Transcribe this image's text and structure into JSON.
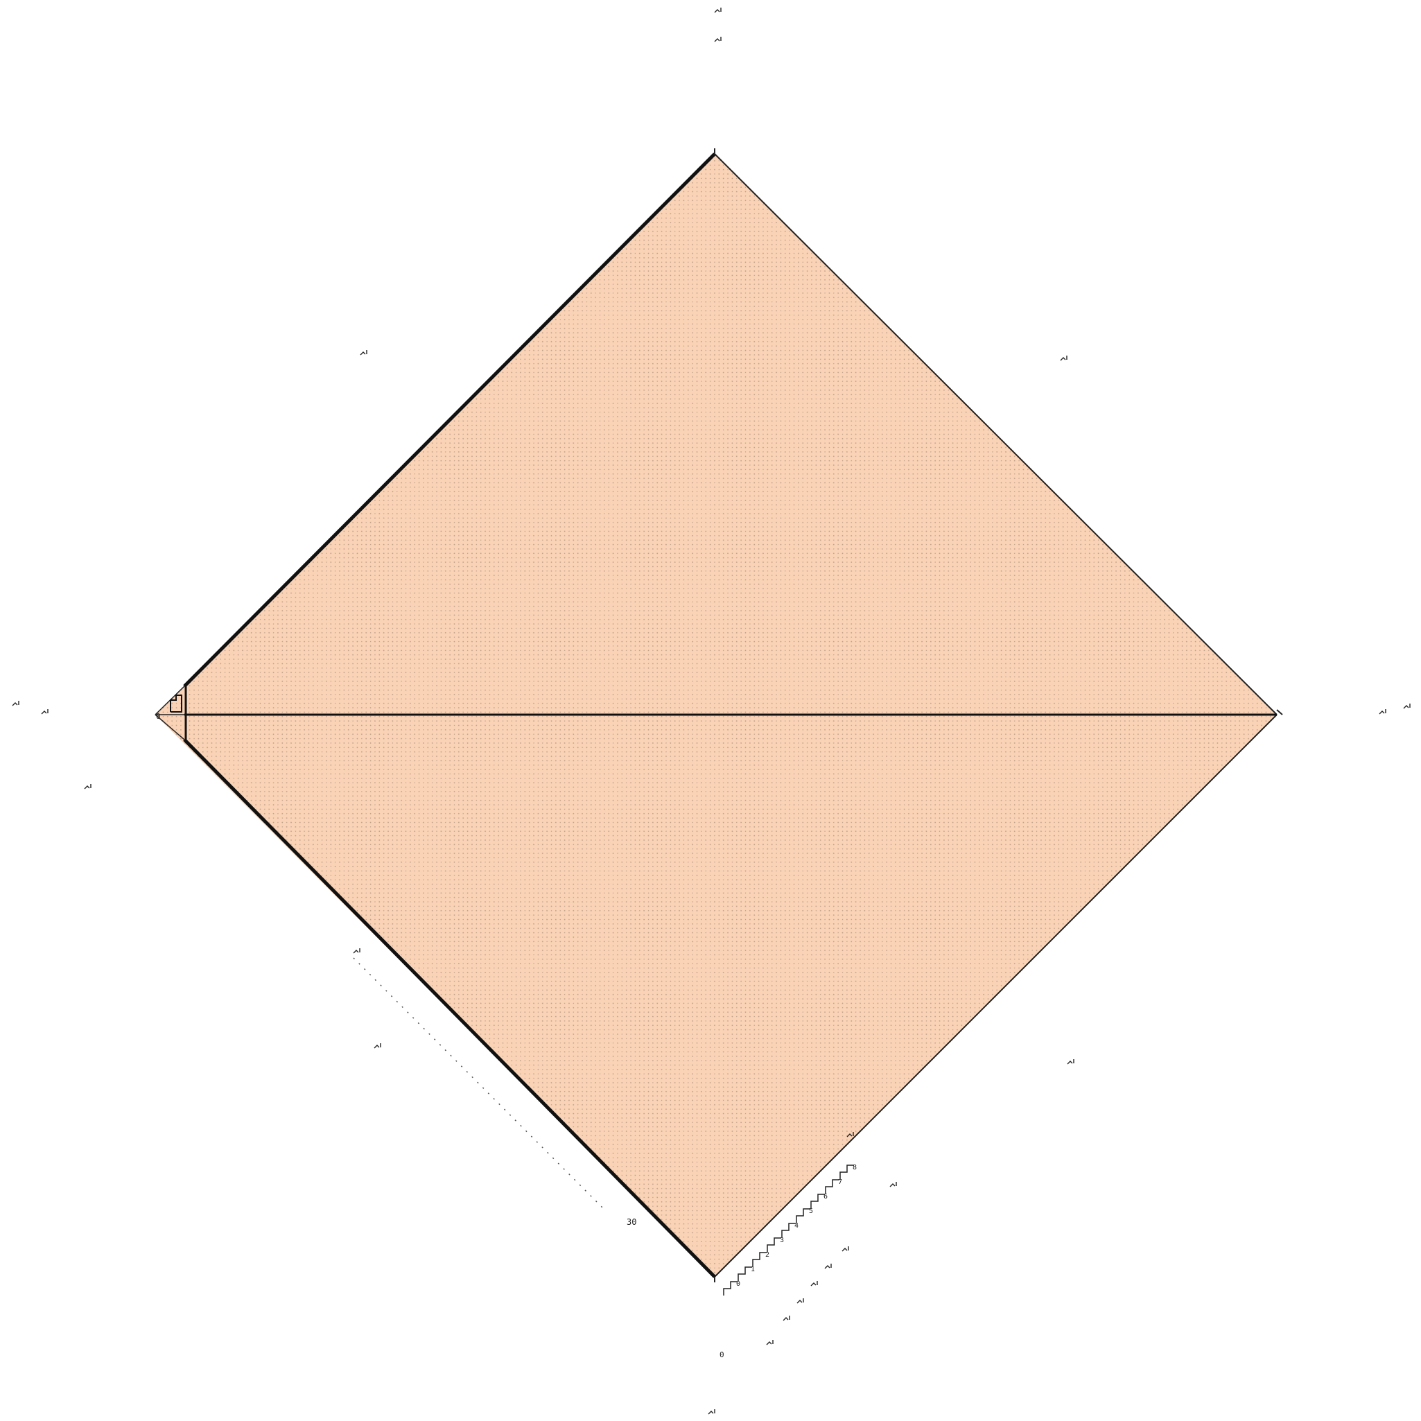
{
  "diagram": {
    "type": "rotated-square-with-horizontal-diagonal",
    "fill_color": "#fad3b6",
    "stipple_color": "#6b5a4c",
    "edge_color": "#222222",
    "bold_edge_color": "#111111",
    "background": "#ffffff"
  },
  "labels": {
    "origin_mark": "0",
    "lower_left_mark": "30",
    "bottom_axis_zero": "0",
    "ladder_ticks": [
      "0",
      "1",
      "2",
      "3",
      "4",
      "5",
      "6",
      "7",
      "8"
    ]
  }
}
